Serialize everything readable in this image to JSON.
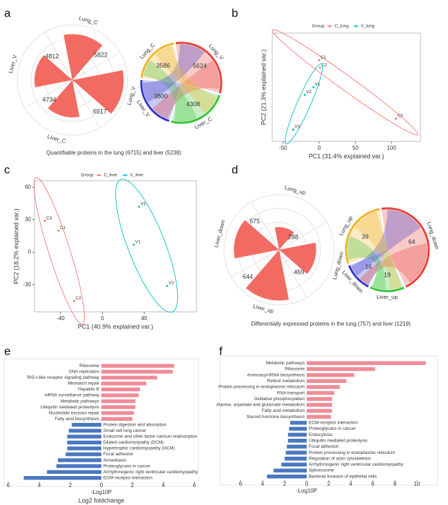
{
  "chart_data": [
    {
      "type": "rose",
      "panel": "a",
      "categories": [
        "Lung_C",
        "Lung_V",
        "Liver_C",
        "Liver_V"
      ],
      "values": [
        5822,
        6517,
        4734,
        4812
      ],
      "color": "#f26b63",
      "rlim": [
        0,
        7000
      ],
      "caption": "Quantifiable proteins in the lung (6715) and liver (5238)"
    },
    {
      "type": "chord",
      "categories": [
        "Lung_V",
        "Liver_C",
        "Liver_V",
        "Lung_C"
      ],
      "values": [
        5624,
        4308,
        3800,
        3586
      ],
      "colors": [
        "#e8403a",
        "#35c435",
        "#3636cc",
        "#f0b429"
      ]
    },
    {
      "type": "scatter",
      "panel": "b",
      "legend_title": "Group:",
      "xlabel": "PC1 (31.4% explained var.)",
      "ylabel": "PC2 (21.3% explained var.)",
      "xlim": [
        -65,
        140
      ],
      "ylim": [
        -45,
        55
      ],
      "xticks": [
        -50,
        0,
        50,
        100
      ],
      "series": [
        {
          "name": "C_lung",
          "color": "#f8766d",
          "labels": [
            "C1",
            "C2",
            "C3"
          ],
          "x": [
            0,
            1,
            106
          ],
          "values": [
            30,
            23,
            -24
          ]
        },
        {
          "name": "V_lung",
          "color": "#00bfc4",
          "labels": [
            "V1",
            "V2",
            "V3"
          ],
          "x": [
            -8,
            -20,
            -36
          ],
          "values": [
            5,
            -2,
            -34
          ]
        }
      ]
    },
    {
      "type": "scatter",
      "panel": "c",
      "legend_title": "Group:",
      "xlabel": "PC1 (40.9% explained var.)",
      "ylabel": "PC2 (18.2% explained var.)",
      "xlim": [
        -65,
        90
      ],
      "ylim": [
        -55,
        66
      ],
      "xticks": [
        -40,
        0,
        40
      ],
      "yticks": [
        -30,
        0,
        30,
        60
      ],
      "series": [
        {
          "name": "C_liver",
          "color": "#f8766d",
          "labels": [
            "C3",
            "C1",
            "C2"
          ],
          "x": [
            -55,
            -42,
            -27
          ],
          "values": [
            29,
            20,
            -45
          ]
        },
        {
          "name": "V_liver",
          "color": "#00bfc4",
          "labels": [
            "V3",
            "V1",
            "V2"
          ],
          "x": [
            35,
            30,
            62
          ],
          "values": [
            42,
            7,
            -31
          ]
        }
      ]
    },
    {
      "type": "rose",
      "panel": "d",
      "categories": [
        "Lung_up",
        "Lung_down",
        "Liver_up",
        "Liver_down"
      ],
      "values": [
        288,
        469,
        644,
        575
      ],
      "color": "#f26b63",
      "rlim": [
        0,
        700
      ],
      "caption": "Differentially expressed proteins in the lung (757) and liver (1219)"
    },
    {
      "type": "chord",
      "categories": [
        "Lung_down",
        "Liver_up",
        "Liver_down",
        "Lung_up"
      ],
      "values": [
        64,
        19,
        16,
        39
      ],
      "colors": [
        "#e8403a",
        "#35c435",
        "#3636cc",
        "#f0b429"
      ]
    },
    {
      "type": "diverging_bar",
      "panel": "e",
      "up_color": "#f08c98",
      "down_color": "#4a78c0",
      "categories": [
        "Ribosome",
        "DNA replication",
        "RIG-I-like receptor signaling pathway",
        "Mismatch repair",
        "Hepatitis B",
        "mRNA surveillance pathway",
        "Metabolic pathways",
        "Ubiquitin mediated proteolysis",
        "Nucleotide excision repair",
        "Fatty acid biosynthesis",
        "Protein digestion and absorption",
        "Small cell lung cancer",
        "Endocrine and other factor-calcium reabsorption",
        "Dilated cardiomyopathy (DCM)",
        "Hypertrophic cardiomyopathy (HCM)",
        "Focal adhesion",
        "Amoebiasis",
        "Proteoglycans in cancer",
        "Arrhythmogenic right ventricular cardiomyopathy",
        "ECM-receptor interaction"
      ],
      "values": [
        4.7,
        4.6,
        3.6,
        2.9,
        2.5,
        2.4,
        2.2,
        2.2,
        2.1,
        2.0,
        -1.9,
        -2.1,
        -2.2,
        -2.2,
        -2.2,
        -2.3,
        -2.8,
        -2.9,
        -3.5,
        -5.0
      ],
      "xlim": [
        -6,
        6
      ],
      "xticks": [
        {
          "value": -6,
          "label": "6"
        },
        {
          "value": -4,
          "label": "4"
        },
        {
          "value": -2,
          "label": "2"
        },
        0,
        2,
        4,
        6
      ],
      "xlabel": "-Log10P",
      "xlabel2": "Log2 foldchange"
    },
    {
      "type": "diverging_bar",
      "panel": "f",
      "up_color": "#f08c98",
      "down_color": "#4a78c0",
      "categories": [
        "Metabolic pathways",
        "Ribosome",
        "Aminoacyl-tRNA biosynthesis",
        "Retinol metabolism",
        "Protein processing in endoplasmic reticulum",
        "RNA transport",
        "Oxidative phosphorylation",
        "Alanine, aspartate and glutamate metabolism",
        "Fatty acid metabolism",
        "Steroid hormone biosynthesis",
        "ECM-receptor interaction",
        "Proteoglycans in cancer",
        "Endocytosis",
        "Ubiquitin mediated proteolysis",
        "Focal adhesion",
        "Protein processing in endoplasmic reticulum",
        "Regulation of actin cytoskeleton",
        "Arrhythmogenic right ventricular cardiomyopathy",
        "Spliceosome",
        "Bacterial invasion of epithelial cells"
      ],
      "values": [
        10.8,
        6.2,
        4.3,
        3.6,
        3.0,
        2.5,
        2.3,
        2.3,
        2.3,
        2.2,
        -1.5,
        -1.6,
        -1.7,
        -1.7,
        -1.8,
        -1.9,
        -2.0,
        -2.3,
        -3.0,
        -3.6
      ],
      "xlim": [
        -7.5,
        11.5
      ],
      "xticks": [
        {
          "value": -6,
          "label": "6"
        },
        {
          "value": -4,
          "label": "4"
        },
        {
          "value": -2,
          "label": "2"
        },
        0,
        2,
        4,
        6,
        8,
        10
      ],
      "xlabel": "-Log10P"
    }
  ]
}
